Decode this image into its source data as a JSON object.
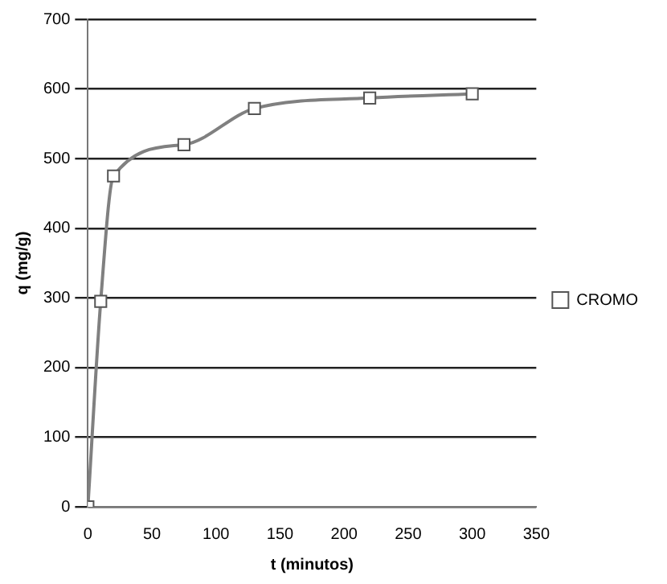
{
  "chart_data": {
    "type": "line",
    "xlabel": "t (minutos)",
    "ylabel": "q (mg/g)",
    "x": [
      0,
      10,
      20,
      75,
      130,
      220,
      300
    ],
    "series": [
      {
        "name": "CROMO",
        "color": "#808080",
        "values": [
          0,
          295,
          475,
          520,
          572,
          587,
          593
        ]
      }
    ],
    "xlim": [
      0,
      350
    ],
    "xticks": [
      0,
      50,
      100,
      150,
      200,
      250,
      300,
      350
    ],
    "ylim": [
      0,
      700
    ],
    "yticks": [
      0,
      100,
      200,
      300,
      400,
      500,
      600,
      700
    ],
    "grid": "y",
    "legend": "right",
    "marker": "square",
    "line_style": "solid"
  }
}
